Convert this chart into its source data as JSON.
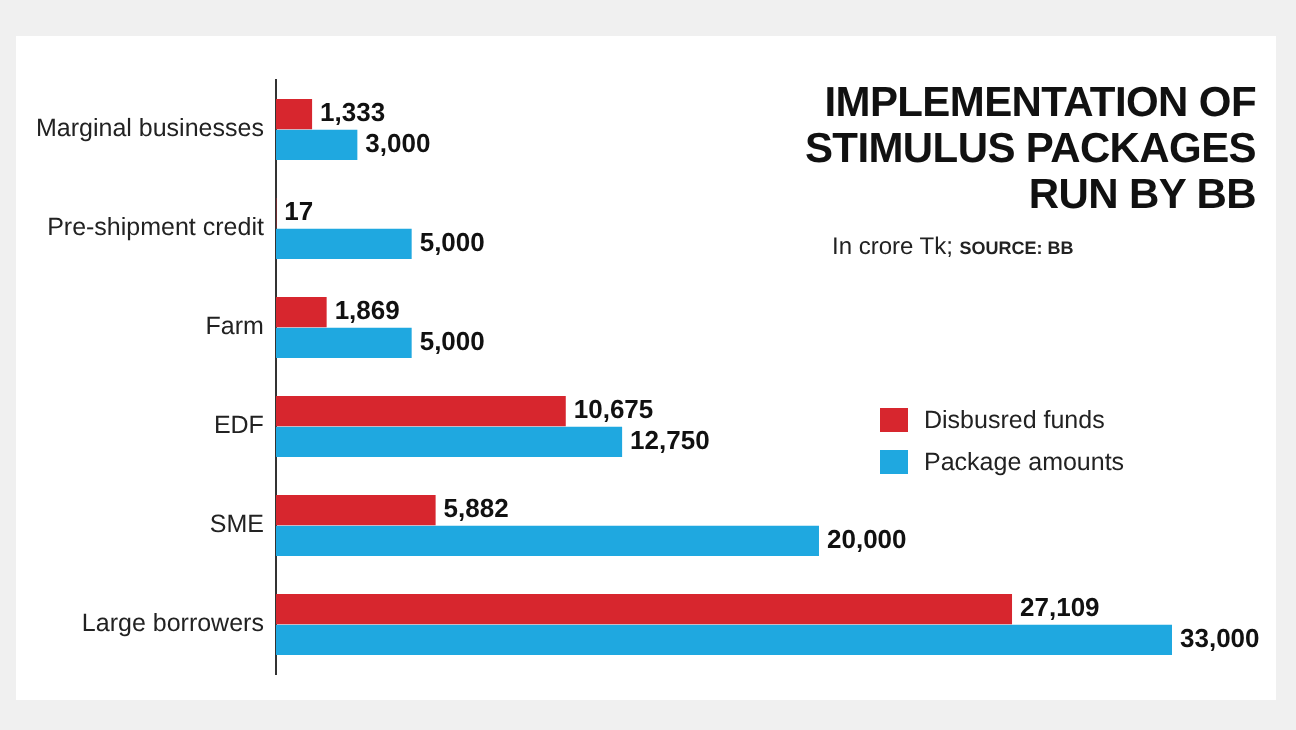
{
  "chart_data": {
    "type": "bar",
    "orientation": "horizontal",
    "title": "IMPLEMENTATION OF STIMULUS PACKAGES RUN BY BB",
    "subtitle": "In crore Tk;",
    "annotations": [
      "SOURCE: BB"
    ],
    "categories": [
      "Marginal businesses",
      "Pre-shipment credit",
      "Farm",
      "EDF",
      "SME",
      "Large borrowers"
    ],
    "series": [
      {
        "name": "Disbusred funds",
        "color": "#d7262e",
        "values": [
          1333,
          17,
          1869,
          10675,
          5882,
          27109
        ],
        "value_labels": [
          "1,333",
          "17",
          "1,869",
          "10,675",
          "5,882",
          "27,109"
        ]
      },
      {
        "name": "Package amounts",
        "color": "#1fa8e0",
        "values": [
          3000,
          5000,
          5000,
          12750,
          20000,
          33000
        ],
        "value_labels": [
          "3,000",
          "5,000",
          "5,000",
          "12,750",
          "20,000",
          "33,000"
        ]
      }
    ],
    "xlim": [
      0,
      33000
    ],
    "tick_labels": "y",
    "grid": false,
    "legend": "right"
  }
}
